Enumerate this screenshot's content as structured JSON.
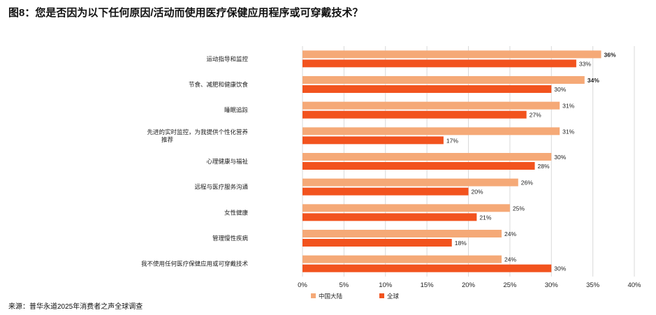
{
  "title": "图8：您是否因为以下任何原因/活动而使用医疗保健应用程序或可穿戴技术？",
  "source": "来源：普华永道2025年消费者之声全球调查",
  "colors": {
    "china": "#F5A977",
    "global": "#F2531E",
    "grid": "#d9d9d9"
  },
  "chart_data": {
    "type": "bar",
    "orientation": "horizontal",
    "title": "图8：您是否因为以下任何原因/活动而使用医疗保健应用程序或可穿戴技术？",
    "categories": [
      [
        "运动指导和监控"
      ],
      [
        "节食、减肥和健康饮食"
      ],
      [
        "睡眠追踪"
      ],
      [
        "先进的实时监控，为我提供个性化营养",
        "推荐"
      ],
      [
        "心理健康与福祉"
      ],
      [
        "远程与医疗服务沟通"
      ],
      [
        "女性健康"
      ],
      [
        "管理慢性疾病"
      ],
      [
        "我不使用任何医疗保健应用或可穿戴技术"
      ]
    ],
    "series": [
      {
        "name": "中国大陆",
        "values": [
          36,
          34,
          31,
          31,
          30,
          26,
          25,
          24,
          24
        ],
        "labels": [
          "36%",
          "34%",
          "31%",
          "31%",
          "30%",
          "26%",
          "25%",
          "24%",
          "24%"
        ]
      },
      {
        "name": "全球",
        "values": [
          33,
          30,
          27,
          17,
          28,
          20,
          21,
          18,
          30
        ],
        "labels": [
          "33%",
          "30%",
          "27%",
          "17%",
          "28%",
          "20%",
          "21%",
          "18%",
          "30%"
        ]
      }
    ],
    "xticks": [
      "0%",
      "5%",
      "10%",
      "15%",
      "20%",
      "25%",
      "30%",
      "35%",
      "40%"
    ],
    "xlim": [
      0,
      40
    ],
    "grid": "vertical",
    "legend": "bottom"
  }
}
